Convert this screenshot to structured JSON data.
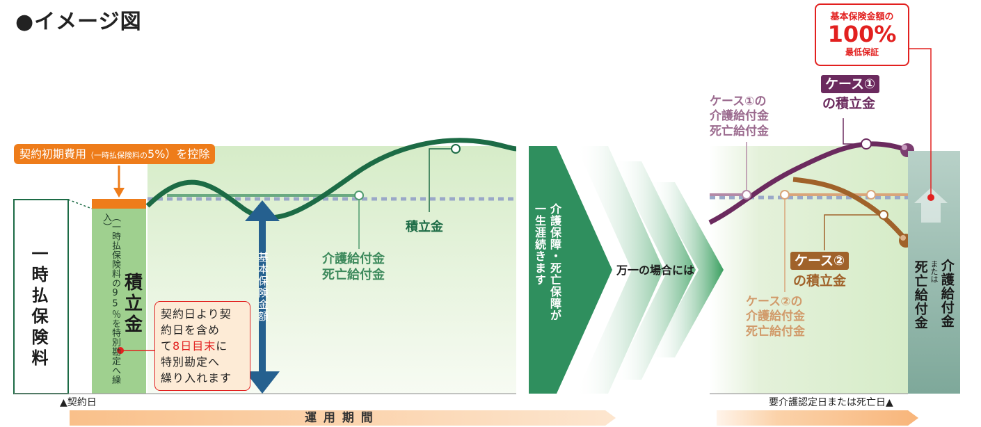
{
  "title": "●イメージ図",
  "lump_sum_premium": "一時払保険料",
  "deduction_label_main": "契約初期費用",
  "deduction_label_small": "（一時払保険料の",
  "deduction_label_pct": "5%",
  "deduction_label_end": "）を控除",
  "special_account_note": "（一時払保険料の95％を特別勘定へ繰入）",
  "reserve_box_label": "積立金",
  "transfer_note": {
    "line1": "契約日より契",
    "line2": "約日を含め",
    "line3_pre": "て",
    "line3_red": "8日目末",
    "line3_post": "に",
    "line4": "特別勘定へ",
    "line5": "繰り入れます"
  },
  "basic_amount_label": "基本保険金額",
  "reserve_curve_label": "積立金",
  "benefit_label": [
    "介護給付金",
    "死亡給付金"
  ],
  "arrow_text": [
    "介護保障・死亡保障が",
    "一生涯続きます"
  ],
  "emergency_label": "万一の場合には",
  "case1": {
    "badge": "ケース①",
    "sub": "の積立金",
    "benefit": [
      "ケース①の",
      "介護給付金",
      "死亡給付金"
    ]
  },
  "case2": {
    "badge": "ケース②",
    "sub": "の積立金",
    "benefit": [
      "ケース②の",
      "介護給付金",
      "死亡給付金"
    ]
  },
  "guarantee": {
    "line1": "基本保険金額の",
    "line2": "100%",
    "line3": "最低保証"
  },
  "final_benefit": {
    "col1": "介護給付金",
    "col2_small": "または",
    "col2": "死亡給付金"
  },
  "contract_date": "▲契約日",
  "event_date": "要介護認定日または死亡日▲",
  "period_label": "運 用 期 間",
  "colors": {
    "green_dark": "#1c6b45",
    "green_mid": "#4e9a6e",
    "green_light": "#9fd08f",
    "orange": "#ee7c1a",
    "blue": "#25608f",
    "purple": "#6b2a5e",
    "brown": "#a0622a",
    "red": "#e2201f",
    "teal": "#8ab0a2"
  }
}
